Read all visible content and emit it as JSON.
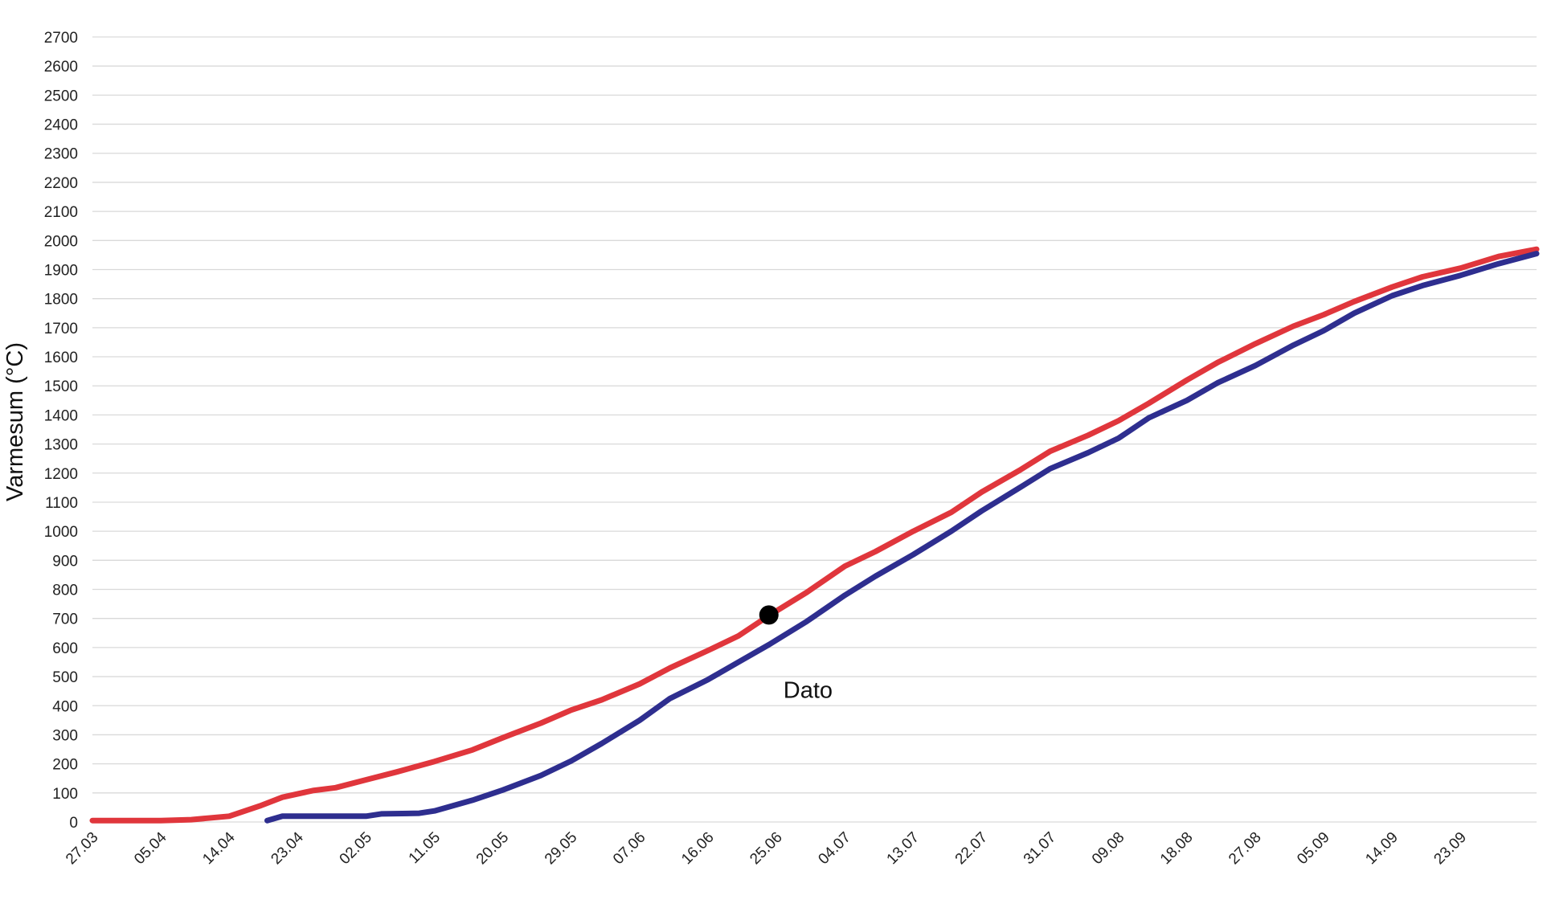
{
  "chart_data": {
    "type": "line",
    "title": "",
    "xlabel": "",
    "ylabel": "Varmesum (°C)",
    "ylim": [
      0,
      2700
    ],
    "yticks": [
      0,
      100,
      200,
      300,
      400,
      500,
      600,
      700,
      800,
      900,
      1000,
      1100,
      1200,
      1300,
      1400,
      1500,
      1600,
      1700,
      1800,
      1900,
      2000,
      2100,
      2200,
      2300,
      2400,
      2500,
      2600,
      2700
    ],
    "xlim": [
      "27.03",
      "03.10"
    ],
    "xtick_labels": [
      "27.03",
      "05.04",
      "14.04",
      "23.04",
      "02.05",
      "11.05",
      "20.05",
      "29.05",
      "07.06",
      "16.06",
      "25.06",
      "04.07",
      "13.07",
      "22.07",
      "31.07",
      "09.08",
      "18.08",
      "27.08",
      "05.09",
      "14.09",
      "23.09"
    ],
    "grid": true,
    "legend": "none",
    "series": [
      {
        "color": "#e0363c",
        "points": [
          [
            "27.03",
            5
          ],
          [
            "01.04",
            5
          ],
          [
            "05.04",
            5
          ],
          [
            "09.04",
            8
          ],
          [
            "14.04",
            20
          ],
          [
            "18.04",
            55
          ],
          [
            "21.04",
            85
          ],
          [
            "25.04",
            108
          ],
          [
            "28.04",
            118
          ],
          [
            "02.05",
            145
          ],
          [
            "06.05",
            172
          ],
          [
            "11.05",
            208
          ],
          [
            "16.05",
            248
          ],
          [
            "20.05",
            290
          ],
          [
            "25.05",
            340
          ],
          [
            "29.05",
            385
          ],
          [
            "02.06",
            420
          ],
          [
            "07.06",
            475
          ],
          [
            "11.06",
            530
          ],
          [
            "16.06",
            590
          ],
          [
            "20.06",
            640
          ],
          [
            "24.06",
            710
          ],
          [
            "29.06",
            790
          ],
          [
            "04.07",
            880
          ],
          [
            "08.07",
            930
          ],
          [
            "13.07",
            1000
          ],
          [
            "18.07",
            1065
          ],
          [
            "22.07",
            1135
          ],
          [
            "27.07",
            1210
          ],
          [
            "31.07",
            1275
          ],
          [
            "05.08",
            1330
          ],
          [
            "09.08",
            1380
          ],
          [
            "13.08",
            1440
          ],
          [
            "18.08",
            1520
          ],
          [
            "22.08",
            1580
          ],
          [
            "27.08",
            1645
          ],
          [
            "01.09",
            1705
          ],
          [
            "05.09",
            1745
          ],
          [
            "09.09",
            1790
          ],
          [
            "14.09",
            1840
          ],
          [
            "18.09",
            1875
          ],
          [
            "23.09",
            1905
          ],
          [
            "28.09",
            1945
          ],
          [
            "03.10",
            1970
          ]
        ]
      },
      {
        "color": "#2e2e8f",
        "points": [
          [
            "19.04",
            5
          ],
          [
            "21.04",
            20
          ],
          [
            "25.04",
            20
          ],
          [
            "02.05",
            20
          ],
          [
            "04.05",
            28
          ],
          [
            "09.05",
            30
          ],
          [
            "11.05",
            38
          ],
          [
            "16.05",
            75
          ],
          [
            "20.05",
            110
          ],
          [
            "25.05",
            160
          ],
          [
            "29.05",
            210
          ],
          [
            "02.06",
            270
          ],
          [
            "07.06",
            350
          ],
          [
            "11.06",
            425
          ],
          [
            "16.06",
            490
          ],
          [
            "20.06",
            550
          ],
          [
            "24.06",
            610
          ],
          [
            "29.06",
            690
          ],
          [
            "04.07",
            780
          ],
          [
            "08.07",
            845
          ],
          [
            "13.07",
            920
          ],
          [
            "18.07",
            1000
          ],
          [
            "22.07",
            1070
          ],
          [
            "27.07",
            1150
          ],
          [
            "31.07",
            1215
          ],
          [
            "05.08",
            1270
          ],
          [
            "09.08",
            1320
          ],
          [
            "13.08",
            1390
          ],
          [
            "18.08",
            1450
          ],
          [
            "22.08",
            1510
          ],
          [
            "27.08",
            1570
          ],
          [
            "01.09",
            1640
          ],
          [
            "05.09",
            1690
          ],
          [
            "09.09",
            1750
          ],
          [
            "14.09",
            1810
          ],
          [
            "18.09",
            1845
          ],
          [
            "23.09",
            1880
          ],
          [
            "28.09",
            1920
          ],
          [
            "03.10",
            1955
          ]
        ]
      }
    ],
    "annotations": [
      {
        "label": "Dato",
        "x": "24.06",
        "y": 712
      }
    ]
  }
}
